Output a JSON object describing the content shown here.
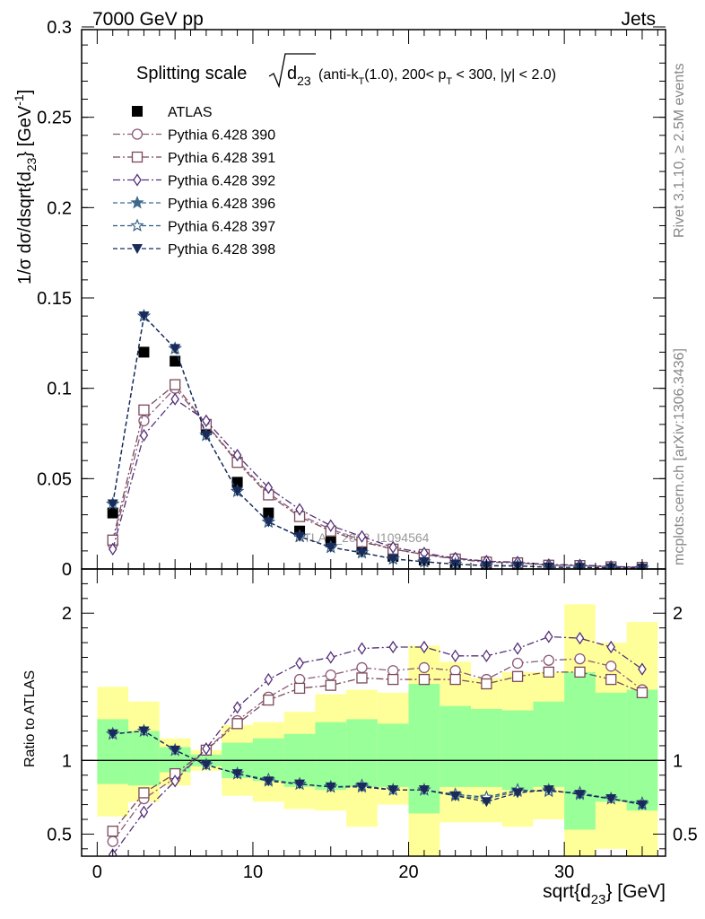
{
  "header": {
    "energy_label": "7000 GeV pp",
    "process_label": "Jets",
    "rivet_label": "Rivet 3.1.10, ≥ 2.5M events",
    "mcplots_label": "mcplots.cern.ch [arXiv:1306.3436]",
    "analysis_watermark": "ATLAS_2012_I1094564"
  },
  "chart_data": [
    {
      "type": "scatter",
      "panel": "main",
      "title": "Splitting scale √d23 (anti-kT(1.0), 200< pT < 300, |y| < 2.0)",
      "title_parts": {
        "prefix": "Splitting scale",
        "sqrt_var": "d",
        "sqrt_sub": "23",
        "alg": "(anti-k",
        "alg_sub": "T",
        "alg_rest": "(1.0), 200< p",
        "pt_sub": "T",
        "rest": " < 300, |y| < 2.0)"
      },
      "ylabel": "1/σ dσ/dsqrt{d23} [GeV-1]",
      "ylabel_parts": {
        "main": "1/σ dσ/dsqrt{d",
        "sub": "23",
        "close": "} [GeV",
        "sup": "-1",
        "end": "]"
      },
      "ylim": [
        0,
        0.3
      ],
      "yticks": [
        0,
        0.05,
        0.1,
        0.15,
        0.2,
        0.25,
        0.3
      ],
      "ytick_labels": [
        "0",
        "0.05",
        "0.1",
        "0.15",
        "0.2",
        "0.25",
        "0.3"
      ],
      "xlim": [
        -1,
        36.5
      ],
      "x": [
        1,
        3,
        5,
        7,
        9,
        11,
        13,
        15,
        17,
        19,
        21,
        23,
        25,
        27,
        29,
        31,
        33,
        35
      ],
      "legend_position": "top-left",
      "series": [
        {
          "name": "ATLAS",
          "color": "#000000",
          "marker": "filled-square",
          "line": "none",
          "values": [
            0.031,
            0.12,
            0.115,
            0.077,
            0.048,
            0.031,
            0.021,
            0.015,
            0.011,
            0.007,
            0.005,
            0.0035,
            0.0025,
            0.0022,
            0.0013,
            0.0012,
            0.0008,
            0.0006
          ]
        },
        {
          "name": "Pythia 6.428 390",
          "color": "#8a5a78",
          "marker": "open-circle",
          "line": "dash-dot",
          "values": [
            0.014,
            0.082,
            0.1,
            0.08,
            0.06,
            0.042,
            0.03,
            0.022,
            0.016,
            0.011,
            0.008,
            0.0058,
            0.0042,
            0.0035,
            0.0022,
            0.002,
            0.0013,
            0.0009
          ]
        },
        {
          "name": "Pythia 6.428 391",
          "color": "#7a4a5a",
          "marker": "open-square",
          "line": "dash-dot",
          "values": [
            0.016,
            0.088,
            0.102,
            0.08,
            0.059,
            0.041,
            0.029,
            0.021,
            0.015,
            0.011,
            0.008,
            0.0055,
            0.0038,
            0.0034,
            0.0021,
            0.0019,
            0.0012,
            0.0009
          ]
        },
        {
          "name": "Pythia 6.428 392",
          "color": "#55307a",
          "marker": "open-diamond",
          "line": "dash-dot",
          "values": [
            0.011,
            0.074,
            0.094,
            0.082,
            0.063,
            0.045,
            0.033,
            0.024,
            0.018,
            0.012,
            0.0088,
            0.006,
            0.0043,
            0.0038,
            0.0024,
            0.0022,
            0.0014,
            0.001
          ]
        },
        {
          "name": "Pythia 6.428 396",
          "color": "#3d6a8a",
          "marker": "filled-star",
          "line": "dash",
          "values": [
            0.036,
            0.14,
            0.122,
            0.074,
            0.043,
            0.026,
            0.018,
            0.012,
            0.009,
            0.0056,
            0.004,
            0.0027,
            0.0018,
            0.0017,
            0.001,
            0.0009,
            0.0006,
            0.00043
          ]
        },
        {
          "name": "Pythia 6.428 397",
          "color": "#2e5a80",
          "marker": "open-star",
          "line": "dash",
          "values": [
            0.036,
            0.14,
            0.122,
            0.074,
            0.043,
            0.026,
            0.018,
            0.012,
            0.009,
            0.0056,
            0.004,
            0.0027,
            0.0019,
            0.0017,
            0.001,
            0.0009,
            0.0006,
            0.00044
          ]
        },
        {
          "name": "Pythia 6.428 398",
          "color": "#1a2a5a",
          "marker": "filled-triangle-down",
          "line": "dash",
          "values": [
            0.036,
            0.14,
            0.122,
            0.074,
            0.043,
            0.026,
            0.018,
            0.012,
            0.009,
            0.0056,
            0.004,
            0.0027,
            0.0018,
            0.0017,
            0.001,
            0.0009,
            0.0006,
            0.00043
          ]
        }
      ]
    },
    {
      "type": "scatter",
      "panel": "ratio",
      "ylabel": "Ratio to ATLAS",
      "xlabel": "sqrt{d23} [GeV]",
      "xlabel_parts": {
        "main": "sqrt{d",
        "sub": "23",
        "rest": "} [GeV]"
      },
      "ylim": [
        0.35,
        2.3
      ],
      "yticks": [
        0.5,
        1,
        2
      ],
      "ytick_labels": [
        "0.5",
        "1",
        "2"
      ],
      "xlim": [
        -1,
        36.5
      ],
      "xticks": [
        0,
        10,
        20,
        30
      ],
      "xtick_labels": [
        "0",
        "10",
        "20",
        "30"
      ],
      "x": [
        1,
        3,
        5,
        7,
        9,
        11,
        13,
        15,
        17,
        19,
        21,
        23,
        25,
        27,
        29,
        31,
        33,
        35
      ],
      "reference_line": 1,
      "uncertainty_bands": {
        "bin_edges": [
          0,
          2,
          4,
          6,
          8,
          10,
          12,
          14,
          16,
          18,
          20,
          22,
          24,
          26,
          28,
          30,
          32,
          34,
          36
        ],
        "inner_color": "#99ff99",
        "outer_color": "#ffff99",
        "inner_low": [
          0.84,
          0.83,
          0.92,
          0.96,
          0.88,
          0.86,
          0.82,
          0.8,
          0.82,
          0.82,
          0.64,
          0.82,
          0.82,
          0.8,
          0.82,
          0.53,
          0.72,
          0.66
        ],
        "inner_high": [
          1.28,
          1.2,
          1.09,
          1.04,
          1.12,
          1.15,
          1.18,
          1.26,
          1.28,
          1.25,
          1.52,
          1.37,
          1.35,
          1.34,
          1.4,
          1.6,
          1.46,
          1.48
        ],
        "outer_low": [
          0.62,
          0.72,
          0.83,
          0.93,
          0.76,
          0.72,
          0.67,
          0.66,
          0.55,
          0.7,
          0.35,
          0.58,
          0.58,
          0.55,
          0.6,
          0.35,
          0.4,
          0.35
        ],
        "outer_high": [
          1.5,
          1.4,
          1.15,
          1.07,
          1.24,
          1.26,
          1.33,
          1.45,
          1.48,
          1.46,
          1.78,
          1.67,
          1.56,
          1.6,
          1.6,
          2.06,
          1.8,
          1.94
        ]
      },
      "series": [
        {
          "name": "Pythia 6.428 390",
          "color": "#8a5a78",
          "marker": "open-circle",
          "line": "dash-dot",
          "values": [
            0.45,
            0.74,
            0.88,
            1.07,
            1.27,
            1.43,
            1.55,
            1.58,
            1.63,
            1.61,
            1.63,
            1.61,
            1.55,
            1.66,
            1.68,
            1.69,
            1.64,
            1.48
          ]
        },
        {
          "name": "Pythia 6.428 391",
          "color": "#7a4a5a",
          "marker": "open-square",
          "line": "dash-dot",
          "values": [
            0.52,
            0.78,
            0.91,
            1.07,
            1.25,
            1.41,
            1.49,
            1.51,
            1.56,
            1.55,
            1.55,
            1.55,
            1.52,
            1.57,
            1.6,
            1.6,
            1.55,
            1.46
          ]
        },
        {
          "name": "Pythia 6.428 392",
          "color": "#55307a",
          "marker": "open-diamond",
          "line": "dash-dot",
          "values": [
            0.36,
            0.65,
            0.86,
            1.08,
            1.36,
            1.55,
            1.66,
            1.7,
            1.76,
            1.77,
            1.77,
            1.71,
            1.71,
            1.76,
            1.84,
            1.83,
            1.77,
            1.62
          ]
        },
        {
          "name": "Pythia 6.428 396",
          "color": "#3d6a8a",
          "marker": "filled-star",
          "line": "dash",
          "values": [
            1.18,
            1.2,
            1.07,
            0.97,
            0.91,
            0.86,
            0.84,
            0.82,
            0.82,
            0.8,
            0.8,
            0.76,
            0.74,
            0.79,
            0.8,
            0.77,
            0.74,
            0.7
          ]
        },
        {
          "name": "Pythia 6.428 397",
          "color": "#2e5a80",
          "marker": "open-star",
          "line": "dash",
          "values": [
            1.18,
            1.2,
            1.07,
            0.97,
            0.91,
            0.87,
            0.84,
            0.82,
            0.83,
            0.8,
            0.8,
            0.77,
            0.75,
            0.8,
            0.79,
            0.78,
            0.74,
            0.71
          ]
        },
        {
          "name": "Pythia 6.428 398",
          "color": "#1a2a5a",
          "marker": "filled-triangle-down",
          "line": "dash",
          "values": [
            1.18,
            1.2,
            1.07,
            0.97,
            0.91,
            0.86,
            0.84,
            0.82,
            0.82,
            0.8,
            0.8,
            0.76,
            0.72,
            0.78,
            0.8,
            0.77,
            0.74,
            0.7
          ]
        }
      ]
    }
  ]
}
